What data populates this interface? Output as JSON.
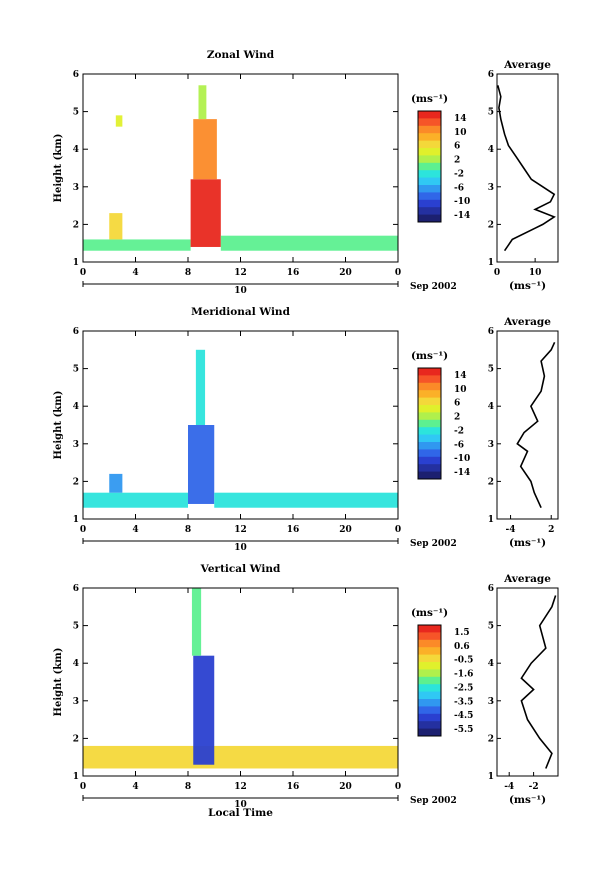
{
  "figure": {
    "xlabel": "Local Time",
    "date_label": "Sep 2002",
    "date_tick": "10",
    "x_ticks": [
      "0",
      "4",
      "8",
      "12",
      "16",
      "20",
      "0"
    ],
    "xlim": [
      0,
      24
    ],
    "ylim": [
      1,
      6
    ],
    "y_ticks": [
      "1",
      "2",
      "3",
      "4",
      "5",
      "6"
    ],
    "ylabel": "Height (km)",
    "unit_label": "(ms⁻¹)",
    "avg_title": "Average"
  },
  "chart_data": [
    {
      "type": "heatmap",
      "title": "Zonal Wind",
      "xlabel": "Local Time",
      "ylabel": "Height (km)",
      "xlim": [
        0,
        24
      ],
      "ylim": [
        1,
        6
      ],
      "colorbar": {
        "ticks": [
          "14",
          "10",
          "6",
          "2",
          "-2",
          "-6",
          "-10",
          "-14"
        ],
        "range": [
          -16,
          16
        ],
        "colors": [
          "#e8281e",
          "#f65528",
          "#fb8a28",
          "#fbb028",
          "#f4d83a",
          "#e0f02c",
          "#b0f04c",
          "#5df090",
          "#2ce4dc",
          "#30c8f4",
          "#3098f0",
          "#3066e8",
          "#2a40d0",
          "#2430a0",
          "#1c2070"
        ]
      },
      "cells": [
        {
          "x": [
            0,
            8.2
          ],
          "y": [
            1.3,
            1.6
          ],
          "color": "#5df090"
        },
        {
          "x": [
            2,
            3
          ],
          "y": [
            1.6,
            2.3
          ],
          "color": "#f4d83a"
        },
        {
          "x": [
            8.2,
            10.5
          ],
          "y": [
            1.4,
            3.2
          ],
          "color": "#e8281e"
        },
        {
          "x": [
            8.4,
            10.2
          ],
          "y": [
            3.2,
            4.8
          ],
          "color": "#fb8a28"
        },
        {
          "x": [
            8.8,
            9.4
          ],
          "y": [
            4.8,
            5.7
          ],
          "color": "#b0f04c"
        },
        {
          "x": [
            10.5,
            24
          ],
          "y": [
            1.3,
            1.7
          ],
          "color": "#5df090"
        },
        {
          "x": [
            2.5,
            3
          ],
          "y": [
            4.6,
            4.9
          ],
          "color": "#e0f02c"
        }
      ],
      "average": {
        "title": "Average",
        "xlabel": "(ms⁻¹)",
        "x_ticks": [
          "0",
          "10"
        ],
        "xlim": [
          0,
          16
        ],
        "y_ticks": [
          "1",
          "2",
          "3",
          "4",
          "5",
          "6"
        ],
        "ylim": [
          1,
          6
        ],
        "profile": [
          [
            2,
            1.3
          ],
          [
            4,
            1.6
          ],
          [
            10,
            1.9
          ],
          [
            12,
            2.0
          ],
          [
            15,
            2.2
          ],
          [
            10,
            2.4
          ],
          [
            14,
            2.6
          ],
          [
            15,
            2.8
          ],
          [
            12,
            3.0
          ],
          [
            9,
            3.2
          ],
          [
            7,
            3.5
          ],
          [
            5,
            3.8
          ],
          [
            3,
            4.1
          ],
          [
            2,
            4.4
          ],
          [
            1,
            4.8
          ],
          [
            0.5,
            5.1
          ],
          [
            1,
            5.4
          ],
          [
            0.2,
            5.7
          ]
        ]
      }
    },
    {
      "type": "heatmap",
      "title": "Meridional Wind",
      "xlabel": "Local Time",
      "ylabel": "Height (km)",
      "xlim": [
        0,
        24
      ],
      "ylim": [
        1,
        6
      ],
      "colorbar": {
        "ticks": [
          "14",
          "10",
          "6",
          "2",
          "-2",
          "-6",
          "-10",
          "-14"
        ],
        "range": [
          -16,
          16
        ],
        "colors": [
          "#e8281e",
          "#f65528",
          "#fb8a28",
          "#fbb028",
          "#f4d83a",
          "#e0f02c",
          "#b0f04c",
          "#5df090",
          "#2ce4dc",
          "#30c8f4",
          "#3098f0",
          "#3066e8",
          "#2a40d0",
          "#2430a0",
          "#1c2070"
        ]
      },
      "cells": [
        {
          "x": [
            0,
            8
          ],
          "y": [
            1.3,
            1.7
          ],
          "color": "#2ce4dc"
        },
        {
          "x": [
            2,
            3
          ],
          "y": [
            1.7,
            2.2
          ],
          "color": "#3098f0"
        },
        {
          "x": [
            8,
            10
          ],
          "y": [
            1.4,
            3.5
          ],
          "color": "#3066e8"
        },
        {
          "x": [
            8.6,
            9.3
          ],
          "y": [
            3.5,
            5.5
          ],
          "color": "#2ce4dc"
        },
        {
          "x": [
            10,
            24
          ],
          "y": [
            1.3,
            1.7
          ],
          "color": "#2ce4dc"
        }
      ],
      "average": {
        "title": "Average",
        "xlabel": "(ms⁻¹)",
        "x_ticks": [
          "-4",
          "2"
        ],
        "xlim": [
          -6,
          3
        ],
        "y_ticks": [
          "1",
          "2",
          "3",
          "4",
          "5",
          "6"
        ],
        "ylim": [
          1,
          6
        ],
        "profile": [
          [
            0.5,
            1.3
          ],
          [
            -0.5,
            1.7
          ],
          [
            -1,
            2.0
          ],
          [
            -2.5,
            2.4
          ],
          [
            -1.5,
            2.8
          ],
          [
            -3,
            3.0
          ],
          [
            -2,
            3.3
          ],
          [
            0,
            3.6
          ],
          [
            -1,
            4.0
          ],
          [
            0.5,
            4.4
          ],
          [
            1,
            4.8
          ],
          [
            0.5,
            5.2
          ],
          [
            2,
            5.5
          ],
          [
            2.5,
            5.7
          ]
        ]
      }
    },
    {
      "type": "heatmap",
      "title": "Vertical Wind",
      "xlabel": "Local Time",
      "ylabel": "Height (km)",
      "xlim": [
        0,
        24
      ],
      "ylim": [
        1,
        6
      ],
      "colorbar": {
        "ticks": [
          "1.5",
          "0.6",
          "-0.5",
          "-1.6",
          "-2.5",
          "-3.5",
          "-4.5",
          "-5.5"
        ],
        "range": [
          -6,
          2
        ],
        "colors": [
          "#e8281e",
          "#f65528",
          "#fb8a28",
          "#fbb028",
          "#f4d83a",
          "#e0f02c",
          "#b0f04c",
          "#5df090",
          "#2ce4dc",
          "#30c8f4",
          "#3098f0",
          "#3066e8",
          "#2a40d0",
          "#2430a0",
          "#1c2070"
        ]
      },
      "cells": [
        {
          "x": [
            0,
            24
          ],
          "y": [
            1.2,
            1.8
          ],
          "color": "#f4d83a"
        },
        {
          "x": [
            8.4,
            10
          ],
          "y": [
            1.3,
            4.2
          ],
          "color": "#2a40d0"
        },
        {
          "x": [
            8.3,
            9
          ],
          "y": [
            4.2,
            6
          ],
          "color": "#5df090"
        }
      ],
      "average": {
        "title": "Average",
        "xlabel": "(ms⁻¹)",
        "x_ticks": [
          "-4",
          "-2"
        ],
        "xlim": [
          -5,
          0
        ],
        "y_ticks": [
          "1",
          "2",
          "3",
          "4",
          "5",
          "6"
        ],
        "ylim": [
          1,
          6
        ],
        "profile": [
          [
            -1,
            1.2
          ],
          [
            -0.5,
            1.6
          ],
          [
            -1.5,
            2.0
          ],
          [
            -2.5,
            2.5
          ],
          [
            -3,
            3.0
          ],
          [
            -2,
            3.3
          ],
          [
            -3,
            3.6
          ],
          [
            -2.2,
            4.0
          ],
          [
            -1,
            4.4
          ],
          [
            -1.5,
            5.0
          ],
          [
            -0.5,
            5.5
          ],
          [
            -0.2,
            5.8
          ]
        ]
      }
    }
  ]
}
